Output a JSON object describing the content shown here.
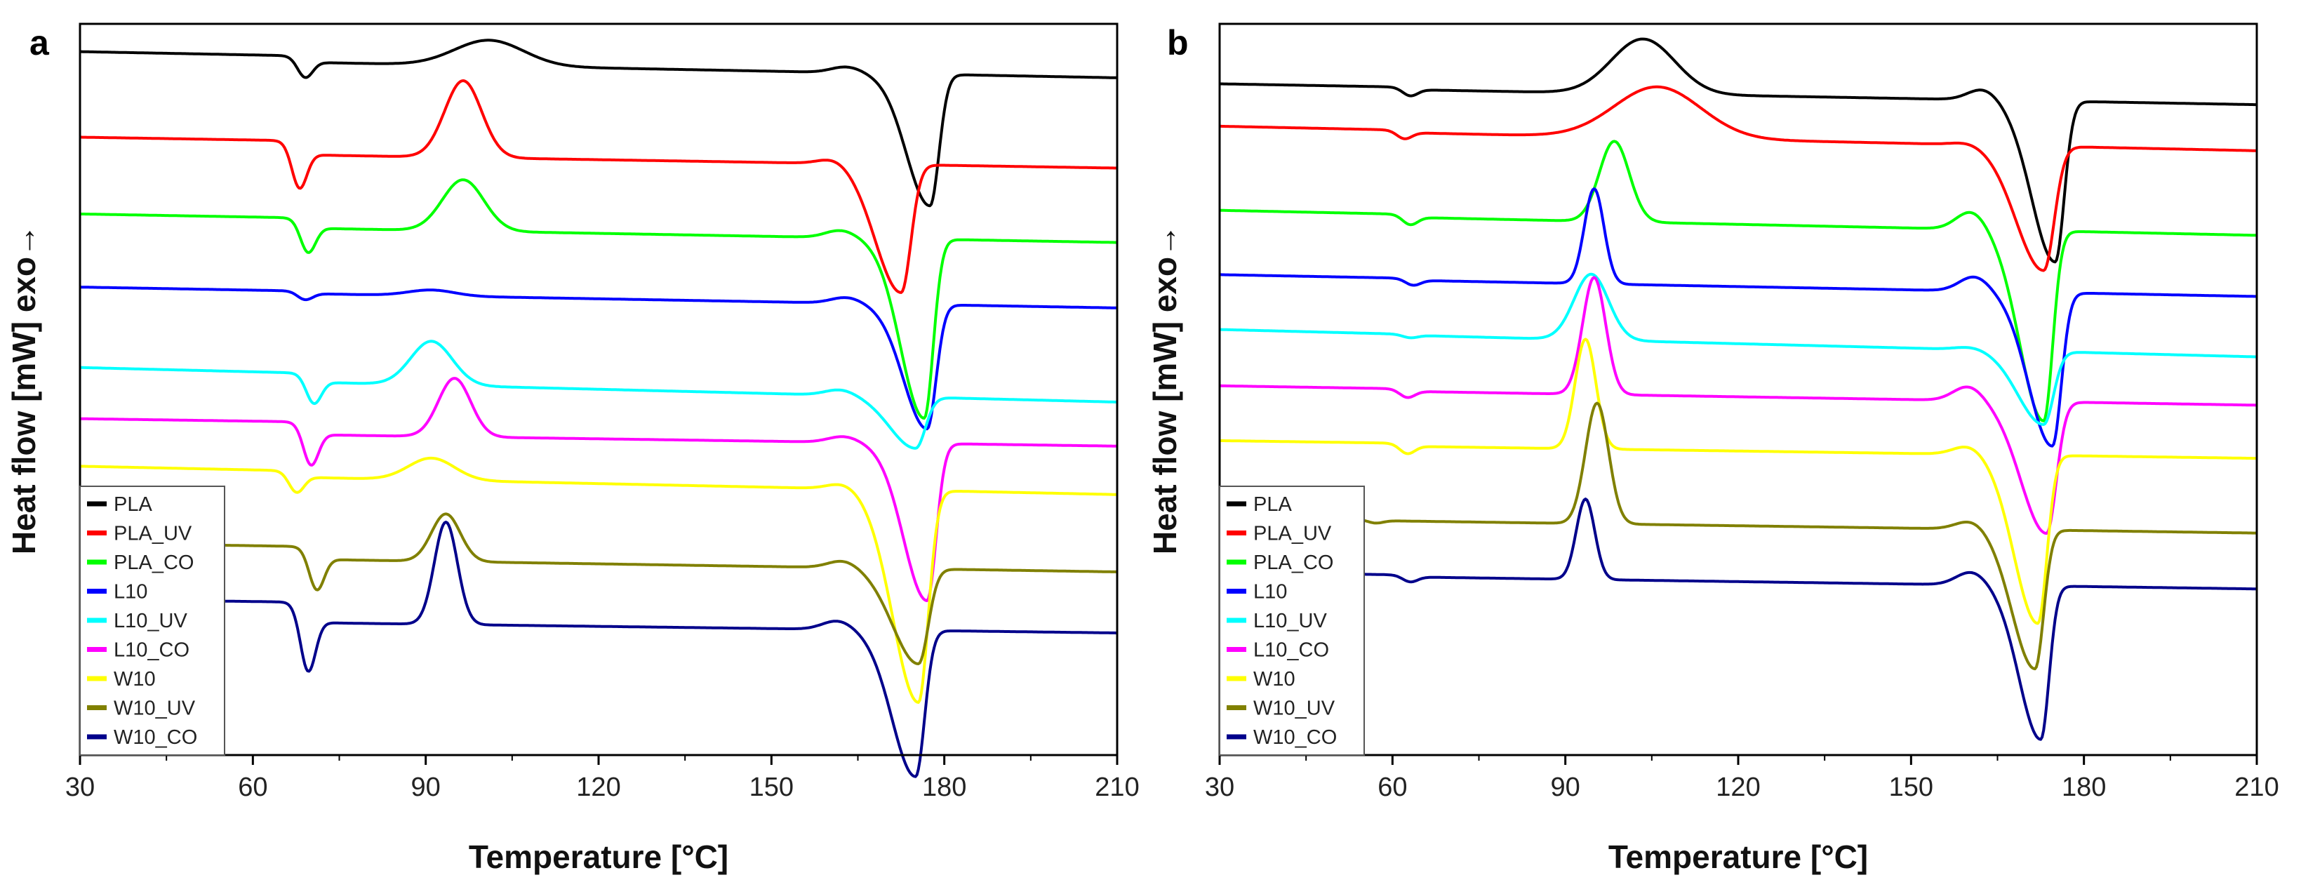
{
  "figure": {
    "panels": [
      {
        "id": "a",
        "label": "a"
      },
      {
        "id": "b",
        "label": "b"
      }
    ]
  },
  "chart_data": [
    {
      "type": "line",
      "panel": "a",
      "title": "",
      "xlabel": "Temperature [°C]",
      "ylabel": "Heat flow [mW] exo→",
      "xlim": [
        30,
        210
      ],
      "ylim": [
        0,
        1
      ],
      "xticks": [
        "30",
        "60",
        "90",
        "120",
        "150",
        "180",
        "210"
      ],
      "grid": false,
      "legend_position": "bottom-left",
      "series": [
        {
          "name": "PLA",
          "color": "#000000",
          "baseline": 0.962,
          "baseline_end": 0.935,
          "tg": 69,
          "tg_depth": 0.025,
          "cc_peak": 101,
          "cc_height": 0.035,
          "cc_width": 6,
          "pre_peak": 163,
          "pre_height": 0.008,
          "melt_peak": 177.5,
          "melt_depth": 0.18,
          "melt_width": 2.4
        },
        {
          "name": "PLA_UV",
          "color": "#ff0000",
          "baseline": 0.845,
          "baseline_end": 0.822,
          "tg": 68,
          "tg_depth": 0.055,
          "cc_peak": 96.5,
          "cc_height": 0.105,
          "cc_width": 3.2,
          "pre_peak": 161,
          "pre_height": 0.008,
          "melt_peak": 172.5,
          "melt_depth": 0.175,
          "melt_width": 2.6
        },
        {
          "name": "PLA_CO",
          "color": "#00ff00",
          "baseline": 0.74,
          "baseline_end": 0.715,
          "tg": 69.5,
          "tg_depth": 0.04,
          "cc_peak": 96.5,
          "cc_height": 0.07,
          "cc_width": 3.6,
          "pre_peak": 162,
          "pre_height": 0.01,
          "melt_peak": 176.5,
          "melt_depth": 0.245,
          "melt_width": 2.4
        },
        {
          "name": "L10",
          "color": "#0000ff",
          "baseline": 0.64,
          "baseline_end": 0.615,
          "tg": 69,
          "tg_depth": 0.01,
          "cc_peak": 91,
          "cc_height": 0.008,
          "cc_width": 4,
          "pre_peak": 163,
          "pre_height": 0.008,
          "melt_peak": 177,
          "melt_depth": 0.17,
          "melt_width": 2.4
        },
        {
          "name": "L10_UV",
          "color": "#00ffff",
          "baseline": 0.53,
          "baseline_end": 0.495,
          "tg": 70.5,
          "tg_depth": 0.035,
          "cc_peak": 91,
          "cc_height": 0.06,
          "cc_width": 3.6,
          "pre_peak": 162,
          "pre_height": 0.008,
          "melt_peak": 175,
          "melt_depth": 0.07,
          "melt_width": 2.6
        },
        {
          "name": "L10_CO",
          "color": "#ff00ff",
          "baseline": 0.46,
          "baseline_end": 0.44,
          "tg": 70,
          "tg_depth": 0.05,
          "cc_peak": 95,
          "cc_height": 0.08,
          "cc_width": 2.8,
          "pre_peak": 162.5,
          "pre_height": 0.008,
          "melt_peak": 177,
          "melt_depth": 0.215,
          "melt_width": 2.4
        },
        {
          "name": "W10",
          "color": "#ffff00",
          "baseline": 0.395,
          "baseline_end": 0.365,
          "tg": 67.5,
          "tg_depth": 0.025,
          "cc_peak": 91,
          "cc_height": 0.03,
          "cc_width": 4,
          "pre_peak": 162.5,
          "pre_height": 0.008,
          "melt_peak": 175.5,
          "melt_depth": 0.29,
          "melt_width": 2.6
        },
        {
          "name": "W10_UV",
          "color": "#808000",
          "baseline": 0.29,
          "baseline_end": 0.268,
          "tg": 71,
          "tg_depth": 0.05,
          "cc_peak": 93.5,
          "cc_height": 0.065,
          "cc_width": 2.5,
          "pre_peak": 162.5,
          "pre_height": 0.01,
          "melt_peak": 175.5,
          "melt_depth": 0.13,
          "melt_width": 2.6
        },
        {
          "name": "W10_CO",
          "color": "#00008b",
          "baseline": 0.213,
          "baseline_end": 0.195,
          "tg": 69.5,
          "tg_depth": 0.08,
          "cc_peak": 93.5,
          "cc_height": 0.14,
          "cc_width": 2.0,
          "pre_peak": 161.5,
          "pre_height": 0.012,
          "melt_peak": 175,
          "melt_depth": 0.2,
          "melt_width": 2.4
        }
      ]
    },
    {
      "type": "line",
      "panel": "b",
      "title": "",
      "xlabel": "Temperature [°C]",
      "ylabel": "Heat flow [mW] exo→",
      "xlim": [
        30,
        210
      ],
      "ylim": [
        0,
        1
      ],
      "xticks": [
        "30",
        "60",
        "90",
        "120",
        "150",
        "180",
        "210"
      ],
      "grid": false,
      "legend_position": "bottom-left",
      "series": [
        {
          "name": "PLA",
          "color": "#000000",
          "baseline": 0.918,
          "baseline_end": 0.893,
          "tg": 63,
          "tg_depth": 0.01,
          "cc_peak": 103.5,
          "cc_height": 0.075,
          "cc_width": 5.5,
          "pre_peak": 162.5,
          "pre_height": 0.015,
          "melt_peak": 175,
          "melt_depth": 0.22,
          "melt_width": 2.4
        },
        {
          "name": "PLA_UV",
          "color": "#ff0000",
          "baseline": 0.86,
          "baseline_end": 0.83,
          "tg": 62,
          "tg_depth": 0.01,
          "cc_peak": 106,
          "cc_height": 0.07,
          "cc_width": 7.5,
          "pre_peak": 160,
          "pre_height": 0.004,
          "melt_peak": 173,
          "melt_depth": 0.17,
          "melt_width": 2.8
        },
        {
          "name": "PLA_CO",
          "color": "#00ff00",
          "baseline": 0.745,
          "baseline_end": 0.715,
          "tg": 63,
          "tg_depth": 0.012,
          "cc_peak": 98.5,
          "cc_height": 0.11,
          "cc_width": 2.6,
          "pre_peak": 160.5,
          "pre_height": 0.025,
          "melt_peak": 173,
          "melt_depth": 0.26,
          "melt_width": 2.4
        },
        {
          "name": "L10",
          "color": "#0000ff",
          "baseline": 0.657,
          "baseline_end": 0.63,
          "tg": 63.5,
          "tg_depth": 0.008,
          "cc_peak": 95,
          "cc_height": 0.13,
          "cc_width": 1.7,
          "pre_peak": 161,
          "pre_height": 0.02,
          "melt_peak": 174.5,
          "melt_depth": 0.21,
          "melt_width": 2.4
        },
        {
          "name": "L10_UV",
          "color": "#00ffff",
          "baseline": 0.582,
          "baseline_end": 0.546,
          "tg": 63,
          "tg_depth": 0.004,
          "cc_peak": 94.5,
          "cc_height": 0.09,
          "cc_width": 3.0,
          "pre_peak": 160.5,
          "pre_height": 0.004,
          "melt_peak": 173,
          "melt_depth": 0.1,
          "melt_width": 2.6
        },
        {
          "name": "L10_CO",
          "color": "#ff00ff",
          "baseline": 0.505,
          "baseline_end": 0.482,
          "tg": 62.5,
          "tg_depth": 0.01,
          "cc_peak": 95,
          "cc_height": 0.16,
          "cc_width": 2.0,
          "pre_peak": 160,
          "pre_height": 0.02,
          "melt_peak": 173.5,
          "melt_depth": 0.18,
          "melt_width": 2.6
        },
        {
          "name": "W10",
          "color": "#ffff00",
          "baseline": 0.43,
          "baseline_end": 0.41,
          "tg": 62.5,
          "tg_depth": 0.012,
          "cc_peak": 93.5,
          "cc_height": 0.15,
          "cc_width": 1.8,
          "pre_peak": 160,
          "pre_height": 0.012,
          "melt_peak": 172,
          "melt_depth": 0.23,
          "melt_width": 2.4
        },
        {
          "name": "W10_UV",
          "color": "#808000",
          "baseline": 0.325,
          "baseline_end": 0.305,
          "tg": 57,
          "tg_depth": 0.004,
          "cc_peak": 95.5,
          "cc_height": 0.165,
          "cc_width": 2.0,
          "pre_peak": 160.5,
          "pre_height": 0.012,
          "melt_peak": 171.5,
          "melt_depth": 0.19,
          "melt_width": 2.3
        },
        {
          "name": "W10_CO",
          "color": "#00008b",
          "baseline": 0.25,
          "baseline_end": 0.23,
          "tg": 63,
          "tg_depth": 0.008,
          "cc_peak": 93.5,
          "cc_height": 0.11,
          "cc_width": 1.6,
          "pre_peak": 160.5,
          "pre_height": 0.018,
          "melt_peak": 172.5,
          "melt_depth": 0.21,
          "melt_width": 2.2
        }
      ]
    }
  ]
}
